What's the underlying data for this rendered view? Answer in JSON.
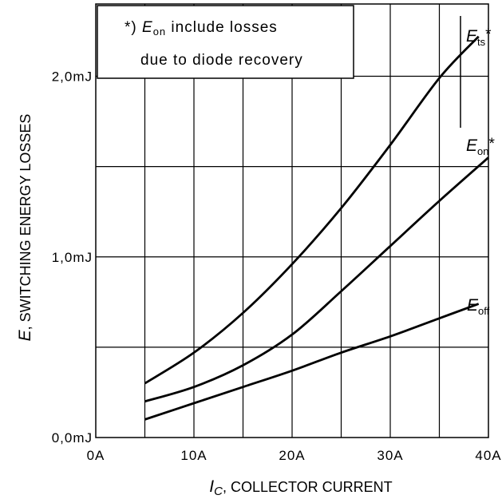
{
  "chart_data": {
    "type": "line",
    "x_unit": "A",
    "y_unit": "mJ",
    "xlabel_symbol": "I",
    "xlabel_symbol_sub": "C",
    "xlabel_text": ", COLLECTOR CURRENT",
    "ylabel_symbol": "E",
    "ylabel_text": ", SWITCHING ENERGY LOSSES",
    "xlim": [
      0,
      40
    ],
    "ylim": [
      0,
      2.4
    ],
    "x_ticks": [
      0,
      10,
      20,
      30,
      40
    ],
    "x_tick_labels": [
      "0A",
      "10A",
      "20A",
      "30A",
      "40A"
    ],
    "y_ticks": [
      0,
      1,
      2
    ],
    "y_tick_labels": [
      "0,0mJ",
      "1,0mJ",
      "2,0mJ"
    ],
    "grid": true,
    "grid_x_step": 5,
    "grid_y_step": 0.5,
    "series": [
      {
        "name": "Ets*",
        "symbol": "E",
        "sub": "ts",
        "suffix": "*",
        "x": [
          5,
          10,
          15,
          20,
          25,
          30,
          35,
          39
        ],
        "y": [
          0.3,
          0.47,
          0.69,
          0.96,
          1.27,
          1.62,
          1.99,
          2.22
        ]
      },
      {
        "name": "Eon*",
        "symbol": "E",
        "sub": "on",
        "suffix": "*",
        "x": [
          5,
          10,
          15,
          20,
          25,
          30,
          35,
          40
        ],
        "y": [
          0.2,
          0.28,
          0.4,
          0.57,
          0.81,
          1.06,
          1.31,
          1.55
        ]
      },
      {
        "name": "Eoff",
        "symbol": "E",
        "sub": "off",
        "suffix": "",
        "x": [
          5,
          10,
          15,
          20,
          25,
          30,
          35,
          39
        ],
        "y": [
          0.1,
          0.19,
          0.28,
          0.37,
          0.47,
          0.56,
          0.66,
          0.74
        ]
      }
    ],
    "annotation": {
      "prefix": "*) ",
      "symbol": "E",
      "sub": "on",
      "line1_rest": " include losses",
      "line2": "due to diode recovery"
    }
  }
}
